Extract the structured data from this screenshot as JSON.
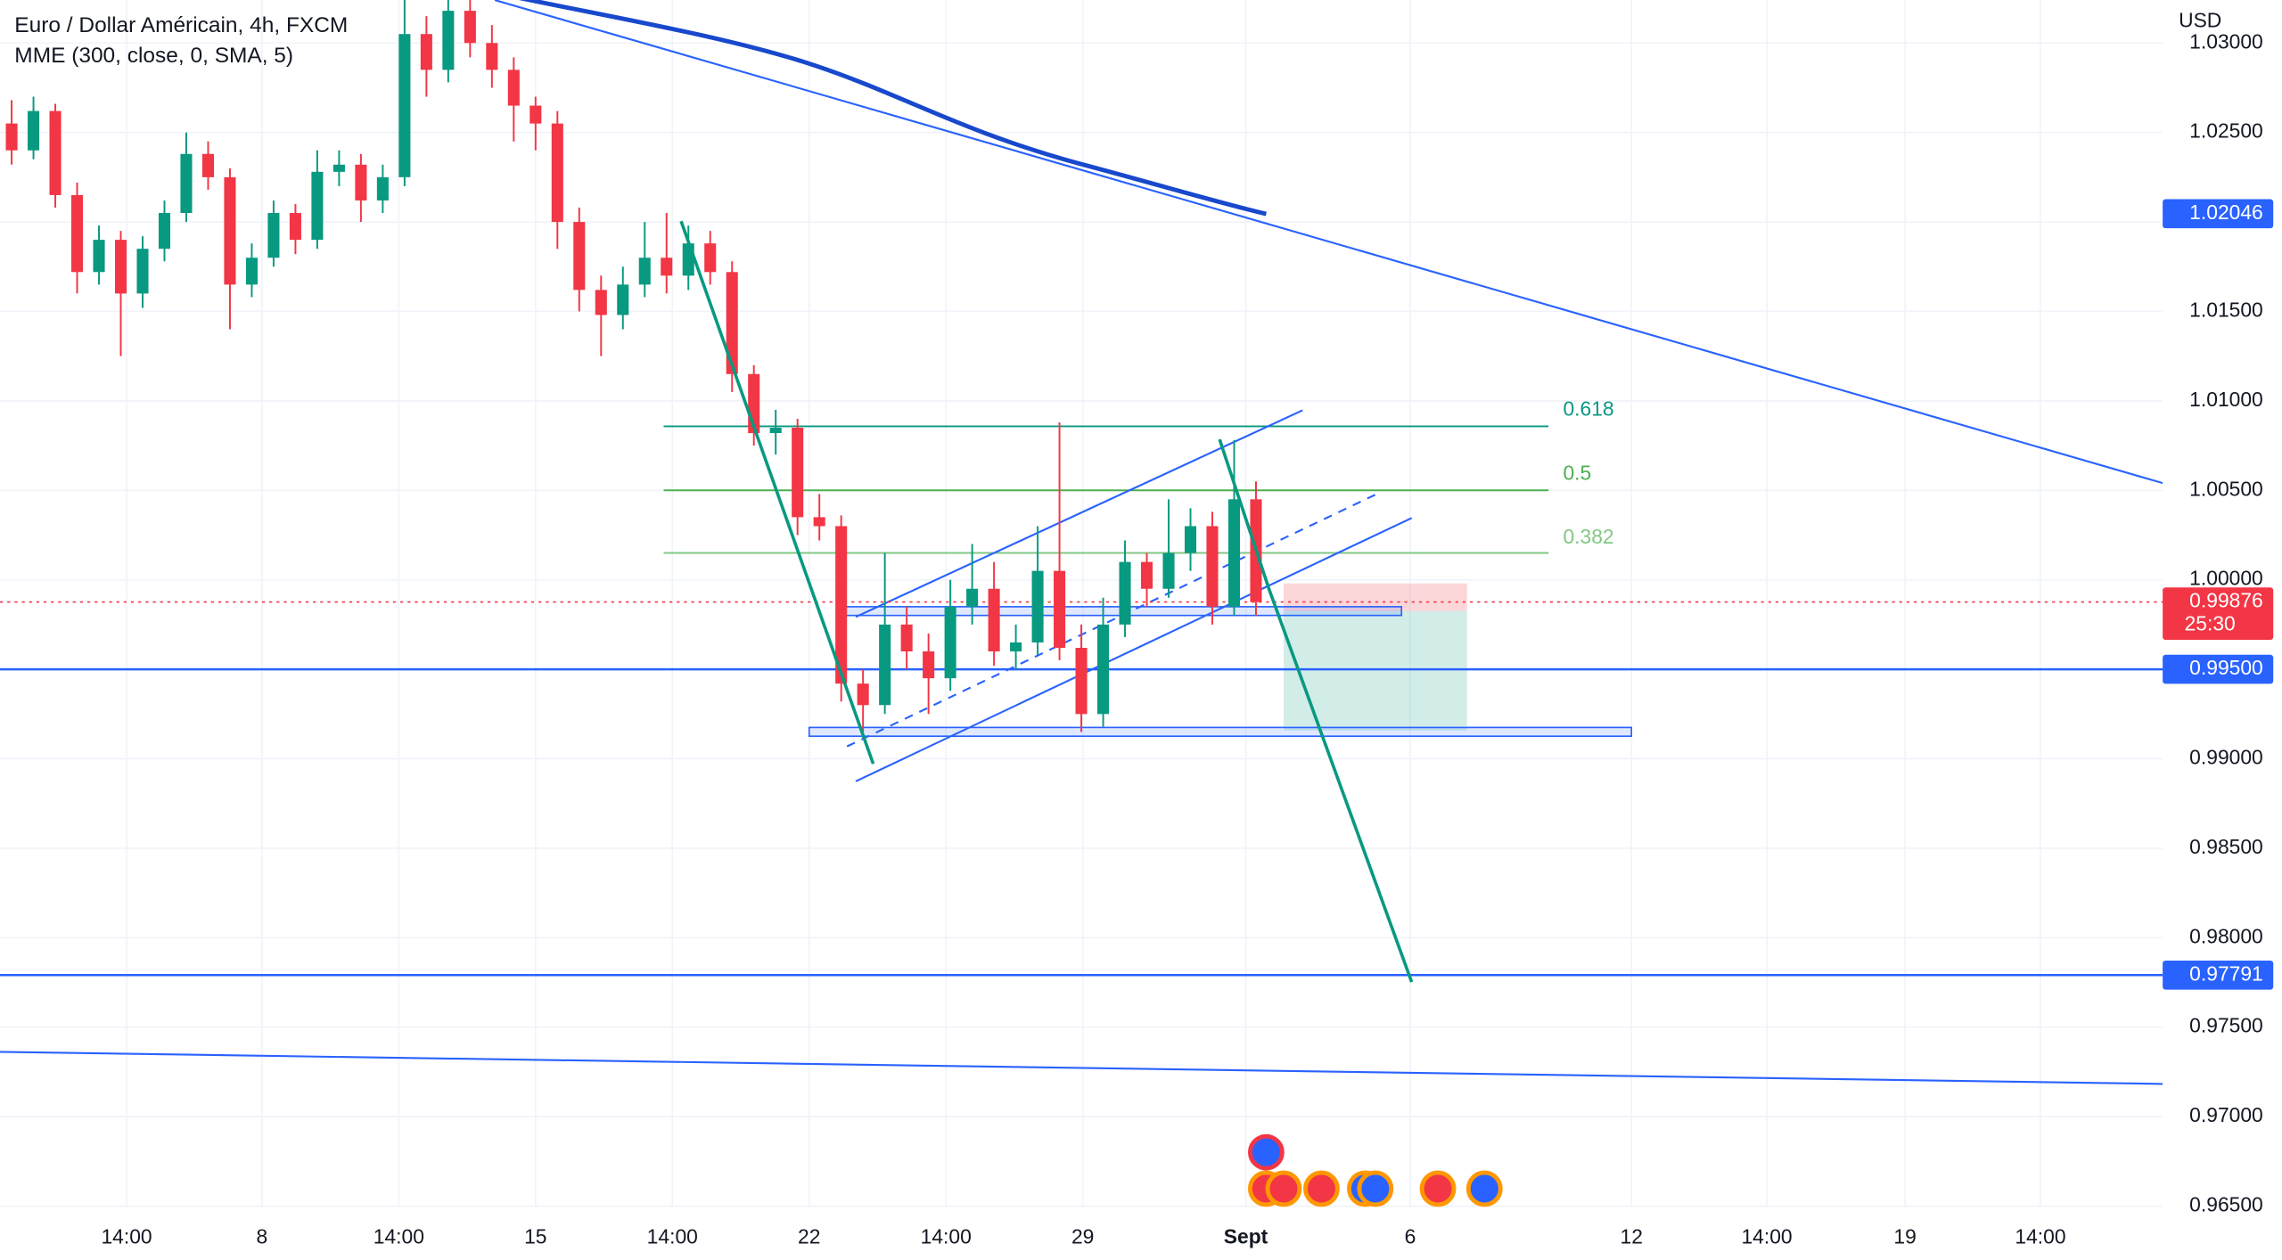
{
  "chart_data": {
    "type": "candlestick",
    "title": "Euro / Dollar Américain, 4h, FXCM",
    "subtitle": "MME (300, close, 0, SMA, 5)",
    "currency": "USD",
    "up_color": "#089981",
    "down_color": "#f23645",
    "ylim": [
      0.965,
      1.0324
    ],
    "yticks": [
      {
        "value": 1.03,
        "label": "1.03000"
      },
      {
        "value": 1.025,
        "label": "1.02500"
      },
      {
        "value": 1.02,
        "label": "1.02000"
      },
      {
        "value": 1.015,
        "label": "1.01500"
      },
      {
        "value": 1.01,
        "label": "1.01000"
      },
      {
        "value": 1.005,
        "label": "1.00500"
      },
      {
        "value": 1.0,
        "label": "1.00000"
      },
      {
        "value": 0.995,
        "label": "0.99500"
      },
      {
        "value": 0.99,
        "label": "0.99000"
      },
      {
        "value": 0.985,
        "label": "0.98500"
      },
      {
        "value": 0.98,
        "label": "0.98000"
      },
      {
        "value": 0.975,
        "label": "0.97500"
      },
      {
        "value": 0.97,
        "label": "0.97000"
      },
      {
        "value": 0.965,
        "label": "0.96500"
      }
    ],
    "x_labels": [
      "14:00",
      "8",
      "14:00",
      "15",
      "14:00",
      "22",
      "14:00",
      "29",
      "Sept",
      "6",
      "12",
      "14:00",
      "19",
      "14:00"
    ],
    "price_markers": [
      {
        "value": 1.02046,
        "label": "1.02046",
        "color": "#2962ff"
      },
      {
        "value": 0.99876,
        "label": "0.99876",
        "color": "#f23645",
        "countdown": "25:30"
      },
      {
        "value": 0.995,
        "label": "0.99500",
        "color": "#2962ff"
      },
      {
        "value": 0.97791,
        "label": "0.97791",
        "color": "#2962ff"
      }
    ],
    "fib_labels": [
      "0.618",
      "0.5",
      "0.382"
    ],
    "ohlc": [
      [
        1.0255,
        1.0268,
        1.0232,
        1.024
      ],
      [
        1.024,
        1.027,
        1.0235,
        1.0262
      ],
      [
        1.0262,
        1.0266,
        1.0208,
        1.0215
      ],
      [
        1.0215,
        1.0222,
        1.016,
        1.0172
      ],
      [
        1.0172,
        1.0198,
        1.0165,
        1.019
      ],
      [
        1.019,
        1.0195,
        1.0125,
        1.016
      ],
      [
        1.016,
        1.0192,
        1.0152,
        1.0185
      ],
      [
        1.0185,
        1.0212,
        1.0178,
        1.0205
      ],
      [
        1.0205,
        1.025,
        1.02,
        1.0238
      ],
      [
        1.0238,
        1.0245,
        1.0218,
        1.0225
      ],
      [
        1.0225,
        1.023,
        1.014,
        1.0165
      ],
      [
        1.0165,
        1.0188,
        1.0158,
        1.018
      ],
      [
        1.018,
        1.0212,
        1.0175,
        1.0205
      ],
      [
        1.0205,
        1.021,
        1.0182,
        1.019
      ],
      [
        1.019,
        1.024,
        1.0185,
        1.0228
      ],
      [
        1.0228,
        1.024,
        1.022,
        1.0232
      ],
      [
        1.0232,
        1.0238,
        1.02,
        1.0212
      ],
      [
        1.0212,
        1.0232,
        1.0205,
        1.0225
      ],
      [
        1.0225,
        1.0324,
        1.022,
        1.0305
      ],
      [
        1.0305,
        1.0315,
        1.027,
        1.0285
      ],
      [
        1.0285,
        1.0324,
        1.0278,
        1.0318
      ],
      [
        1.0318,
        1.0324,
        1.0292,
        1.03
      ],
      [
        1.03,
        1.031,
        1.0275,
        1.0285
      ],
      [
        1.0285,
        1.0292,
        1.0245,
        1.0265
      ],
      [
        1.0265,
        1.027,
        1.024,
        1.0255
      ],
      [
        1.0255,
        1.0262,
        1.0185,
        1.02
      ],
      [
        1.02,
        1.0208,
        1.015,
        1.0162
      ],
      [
        1.0162,
        1.017,
        1.0125,
        1.0148
      ],
      [
        1.0148,
        1.0175,
        1.014,
        1.0165
      ],
      [
        1.0165,
        1.02,
        1.0158,
        1.018
      ],
      [
        1.018,
        1.0205,
        1.016,
        1.017
      ],
      [
        1.017,
        1.0198,
        1.0162,
        1.0188
      ],
      [
        1.0188,
        1.0195,
        1.0165,
        1.0172
      ],
      [
        1.0172,
        1.0178,
        1.0105,
        1.0115
      ],
      [
        1.0115,
        1.012,
        1.0075,
        1.0082
      ],
      [
        1.0082,
        1.0095,
        1.007,
        1.0085
      ],
      [
        1.0085,
        1.009,
        1.0025,
        1.0035
      ],
      [
        1.0035,
        1.0048,
        1.0022,
        1.003
      ],
      [
        1.003,
        1.0036,
        0.9932,
        0.9942
      ],
      [
        0.9942,
        0.995,
        0.9915,
        0.993
      ],
      [
        0.993,
        1.0015,
        0.9925,
        0.9975
      ],
      [
        0.9975,
        0.9985,
        0.995,
        0.996
      ],
      [
        0.996,
        0.997,
        0.9925,
        0.9945
      ],
      [
        0.9945,
        1.0,
        0.9938,
        0.9985
      ],
      [
        0.9985,
        1.002,
        0.9975,
        0.9995
      ],
      [
        0.9995,
        1.001,
        0.9952,
        0.996
      ],
      [
        0.996,
        0.9975,
        0.995,
        0.9965
      ],
      [
        0.9965,
        1.003,
        0.9958,
        1.0005
      ],
      [
        1.0005,
        1.0088,
        0.9955,
        0.9962
      ],
      [
        0.9962,
        0.9975,
        0.9915,
        0.9925
      ],
      [
        0.9925,
        0.999,
        0.9918,
        0.9975
      ],
      [
        0.9975,
        1.0022,
        0.9968,
        1.001
      ],
      [
        1.001,
        1.0015,
        0.9985,
        0.9995
      ],
      [
        0.9995,
        1.0045,
        0.999,
        1.0015
      ],
      [
        1.0015,
        1.004,
        1.0005,
        1.003
      ],
      [
        1.003,
        1.0038,
        0.9975,
        0.9985
      ],
      [
        0.9985,
        1.0078,
        0.998,
        1.0045
      ],
      [
        1.0045,
        1.0055,
        0.998,
        0.99876
      ]
    ]
  }
}
